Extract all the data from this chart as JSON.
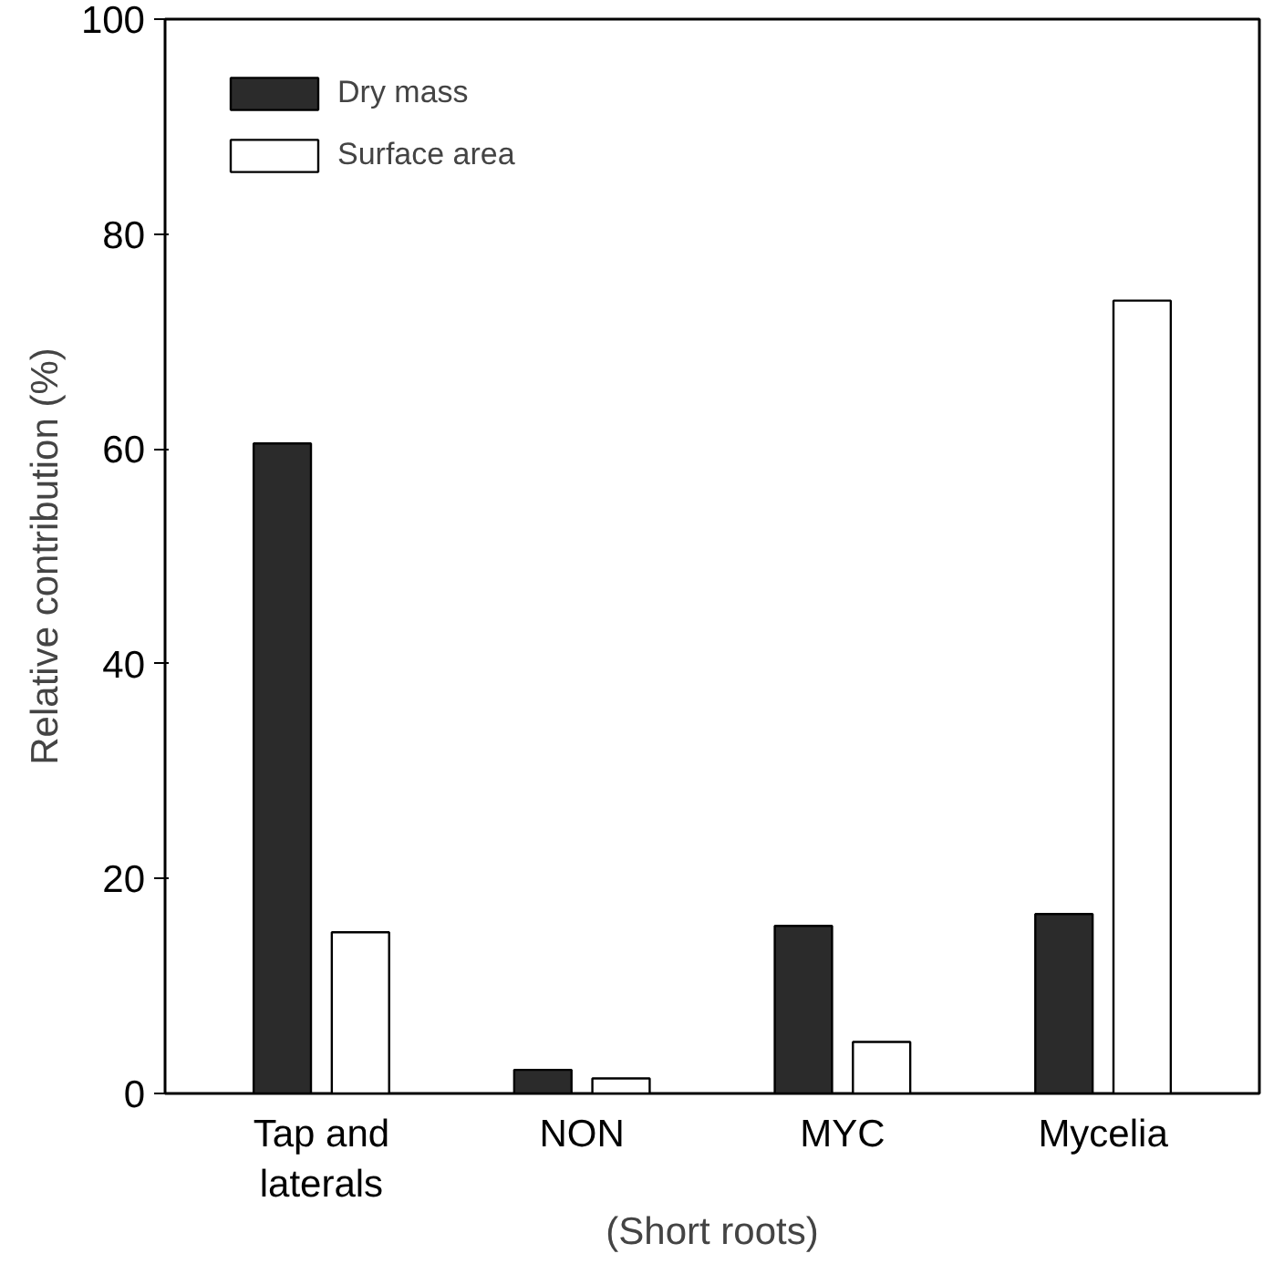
{
  "chart_data": {
    "type": "bar",
    "ylabel": "Relative contribution (%)",
    "categories": [
      "Tap and\nlaterals",
      "NON",
      "MYC",
      "Mycelia"
    ],
    "series": [
      {
        "name": "Dry mass",
        "color": "#2b2b2b",
        "values": [
          60.5,
          2.2,
          15.6,
          16.7
        ]
      },
      {
        "name": "Surface area",
        "color": "#ffffff",
        "values": [
          15,
          1.4,
          4.8,
          73.8
        ]
      }
    ],
    "ylim": [
      0,
      100
    ],
    "yticks": [
      0,
      20,
      40,
      60,
      80,
      100
    ],
    "grid": false,
    "legend": "top left",
    "annotations": [
      "(Short roots)"
    ]
  }
}
